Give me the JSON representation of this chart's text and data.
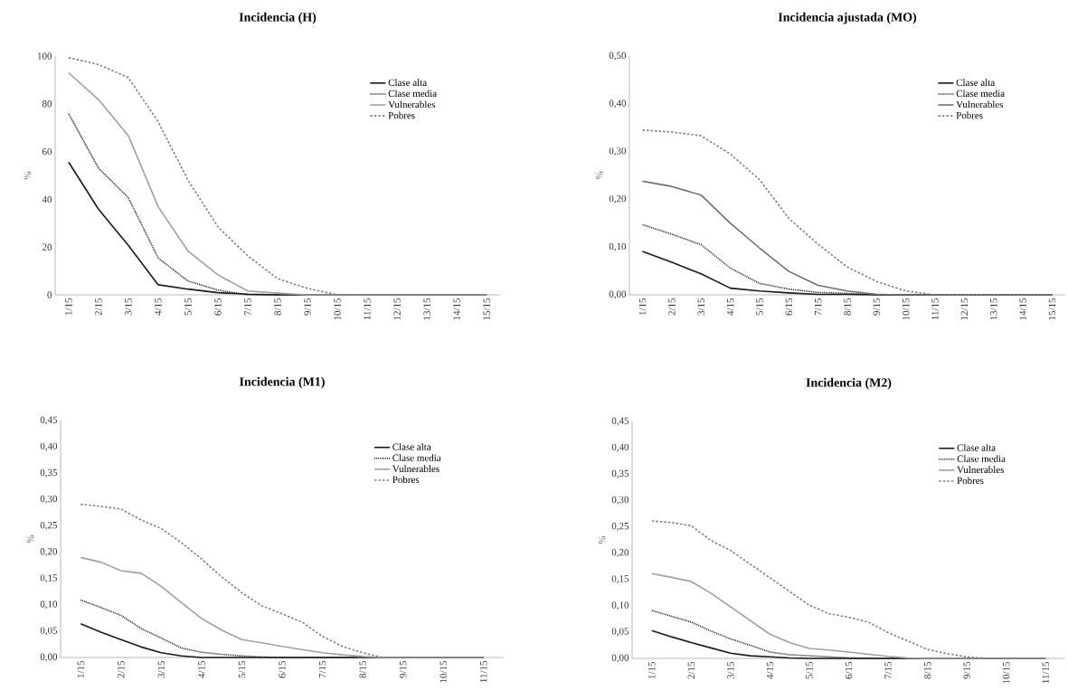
{
  "chart_data": [
    {
      "type": "line",
      "title": "Incidencia (H)",
      "ylabel": "%",
      "legend": "top right",
      "categories": [
        "1/15",
        "2/15",
        "3/15",
        "4/15",
        "5/15",
        "6/15",
        "7/15",
        "8/15",
        "9/15",
        "10/15",
        "11/15",
        "12/15",
        "13/15",
        "14/15",
        "15/15"
      ],
      "ylim": [
        0,
        100
      ],
      "yticks": [
        0,
        20,
        40,
        60,
        80,
        100
      ],
      "series": [
        {
          "name": "Clase alta",
          "color": "#1a1a1a",
          "line_style": "solid",
          "values": [
            55.6,
            35.9,
            20.7,
            4.2,
            2.4,
            0.9,
            0.3,
            0,
            0,
            0,
            0,
            0,
            0,
            0,
            0
          ]
        },
        {
          "name": "Clase media",
          "color": "#1a1a1a",
          "line_style": "dotted",
          "values": [
            75.9,
            53.1,
            40.7,
            15.4,
            5.8,
            2.0,
            0,
            0,
            0,
            0,
            0,
            0,
            0,
            0,
            0
          ]
        },
        {
          "name": "Vulnerables",
          "color": "#a0a0a0",
          "line_style": "solid",
          "values": [
            93,
            81.8,
            66.7,
            36.9,
            18.3,
            8.4,
            1.6,
            0.7,
            0,
            0,
            0,
            0,
            0,
            0,
            0
          ]
        },
        {
          "name": "Pobres",
          "color": "#808080",
          "line_style": "dashed",
          "values": [
            99.3,
            96.5,
            91,
            72.5,
            48,
            28.5,
            16.3,
            6.8,
            2.7,
            0,
            0,
            0,
            0,
            0,
            0
          ]
        }
      ]
    },
    {
      "type": "line",
      "title": "Incidencia ajustada (MO)",
      "ylabel": "%",
      "legend": "top right",
      "categories": [
        "1/15",
        "2/15",
        "3/15",
        "4/15",
        "5/15",
        "6/15",
        "7/15",
        "8/15",
        "9/15",
        "10/15",
        "11/15",
        "12/15",
        "13/15",
        "14/15",
        "15/15"
      ],
      "ylim": [
        0,
        0.5
      ],
      "yticks": [
        {
          "value": 0,
          "label": "0,00"
        },
        {
          "value": 0.1,
          "label": "0,10"
        },
        {
          "value": 0.2,
          "label": "0,20"
        },
        {
          "value": 0.3,
          "label": "0,30"
        },
        {
          "value": 0.4,
          "label": "0,40"
        },
        {
          "value": 0.5,
          "label": "0,50"
        }
      ],
      "series": [
        {
          "name": "Clase alta",
          "color": "#1a1a1a",
          "line_style": "solid",
          "values": [
            0.091,
            0.068,
            0.044,
            0.014,
            0.008,
            0.004,
            0.001,
            0.001,
            0,
            0,
            0,
            0,
            0,
            0,
            0
          ]
        },
        {
          "name": "Clase media",
          "color": "#1a1a1a",
          "line_style": "dotted",
          "values": [
            0.147,
            0.127,
            0.105,
            0.056,
            0.024,
            0.012,
            0.005,
            0.003,
            0.001,
            0,
            0,
            0,
            0,
            0,
            0
          ]
        },
        {
          "name": "Vulnerables",
          "color": "#707070",
          "line_style": "solid",
          "values": [
            0.238,
            0.227,
            0.209,
            0.15,
            0.098,
            0.049,
            0.02,
            0.008,
            0.001,
            0,
            0,
            0,
            0,
            0,
            0
          ]
        },
        {
          "name": "Pobres",
          "color": "#808080",
          "line_style": "dashed",
          "values": [
            0.345,
            0.341,
            0.333,
            0.295,
            0.241,
            0.16,
            0.106,
            0.058,
            0.028,
            0.008,
            0,
            0,
            0,
            0,
            0
          ]
        }
      ]
    },
    {
      "type": "line",
      "title": "Incidencia (M1)",
      "ylabel": "%",
      "legend": "top right",
      "categories": [
        "1/15",
        null,
        "2/15",
        null,
        "3/15",
        null,
        "4/15",
        null,
        "5/15",
        null,
        "6/15",
        null,
        "7/15",
        null,
        "8/15",
        null,
        "9/15",
        null,
        "10/15",
        null,
        "11/15"
      ],
      "ylim": [
        0,
        0.45
      ],
      "yticks": [
        {
          "value": 0,
          "label": "0,00"
        },
        {
          "value": 0.05,
          "label": "0,05"
        },
        {
          "value": 0.1,
          "label": "0,10"
        },
        {
          "value": 0.15,
          "label": "0,15"
        },
        {
          "value": 0.2,
          "label": "0,20"
        },
        {
          "value": 0.25,
          "label": "0,25"
        },
        {
          "value": 0.3,
          "label": "0,30"
        },
        {
          "value": 0.35,
          "label": "0,35"
        },
        {
          "value": 0.4,
          "label": "0,40"
        },
        {
          "value": 0.45,
          "label": "0,45"
        }
      ],
      "series": [
        {
          "name": "Clase alta",
          "color": "#1a1a1a",
          "line_style": "solid",
          "values": [
            0.064,
            0.048,
            0.034,
            0.02,
            0.009,
            0.003,
            0,
            0,
            0,
            0,
            0,
            0,
            0,
            0,
            0,
            0,
            0,
            0,
            0,
            0,
            0
          ]
        },
        {
          "name": "Clase media",
          "color": "#1a1a1a",
          "line_style": "dotted",
          "values": [
            0.109,
            0.095,
            0.08,
            0.055,
            0.037,
            0.018,
            0.01,
            0.006,
            0.003,
            0.001,
            0,
            0,
            0,
            0,
            0,
            0,
            0,
            0,
            0,
            0,
            0
          ]
        },
        {
          "name": "Vulnerables",
          "color": "#a0a0a0",
          "line_style": "solid",
          "values": [
            0.19,
            0.181,
            0.165,
            0.16,
            0.135,
            0.104,
            0.074,
            0.052,
            0.034,
            0.028,
            0.021,
            0.015,
            0.009,
            0.005,
            0.002,
            0,
            0,
            0,
            0,
            0,
            0
          ]
        },
        {
          "name": "Pobres",
          "color": "#808080",
          "line_style": "dashed",
          "values": [
            0.291,
            0.287,
            0.282,
            0.261,
            0.245,
            0.218,
            0.187,
            0.153,
            0.123,
            0.098,
            0.083,
            0.067,
            0.04,
            0.021,
            0.009,
            0,
            0,
            0,
            0,
            0,
            0
          ]
        }
      ]
    },
    {
      "type": "line",
      "title": "Incidencia (M2)",
      "ylabel": "%",
      "legend": "top right",
      "categories": [
        "1/15",
        null,
        "2/15",
        null,
        "3/15",
        null,
        "4/15",
        null,
        "5/15",
        null,
        "6/15",
        null,
        "7/15",
        null,
        "8/15",
        null,
        "9/15",
        null,
        "10/15",
        null,
        "11/15"
      ],
      "ylim": [
        0,
        0.45
      ],
      "yticks": [
        {
          "value": 0,
          "label": "0,00"
        },
        {
          "value": 0.05,
          "label": "0,05"
        },
        {
          "value": 0.1,
          "label": "0,10"
        },
        {
          "value": 0.15,
          "label": "0,15"
        },
        {
          "value": 0.2,
          "label": "0,20"
        },
        {
          "value": 0.25,
          "label": "0,25"
        },
        {
          "value": 0.3,
          "label": "0,30"
        },
        {
          "value": 0.35,
          "label": "0,35"
        },
        {
          "value": 0.4,
          "label": "0,40"
        },
        {
          "value": 0.45,
          "label": "0,45"
        }
      ],
      "series": [
        {
          "name": "Clase alta",
          "color": "#1a1a1a",
          "line_style": "solid",
          "values": [
            0.053,
            0.041,
            0.03,
            0.02,
            0.01,
            0.005,
            0.003,
            0.001,
            0,
            0,
            0,
            0,
            0,
            0,
            0,
            0,
            0,
            0,
            0,
            0,
            0
          ]
        },
        {
          "name": "Clase media",
          "color": "#1a1a1a",
          "line_style": "dotted",
          "values": [
            0.091,
            0.08,
            0.069,
            0.052,
            0.037,
            0.025,
            0.012,
            0.007,
            0.005,
            0.003,
            0.001,
            0,
            0,
            0,
            0,
            0,
            0,
            0,
            0,
            0,
            0
          ]
        },
        {
          "name": "Vulnerables",
          "color": "#a0a0a0",
          "line_style": "solid",
          "values": [
            0.161,
            0.154,
            0.146,
            0.124,
            0.098,
            0.072,
            0.046,
            0.03,
            0.019,
            0.016,
            0.012,
            0.008,
            0.004,
            0.001,
            0,
            0,
            0,
            0,
            0,
            0,
            0
          ]
        },
        {
          "name": "Pobres",
          "color": "#808080",
          "line_style": "dashed",
          "values": [
            0.261,
            0.258,
            0.252,
            0.224,
            0.205,
            0.179,
            0.153,
            0.127,
            0.101,
            0.085,
            0.078,
            0.069,
            0.049,
            0.033,
            0.017,
            0.009,
            0.003,
            0,
            0,
            0,
            0
          ]
        }
      ]
    }
  ]
}
